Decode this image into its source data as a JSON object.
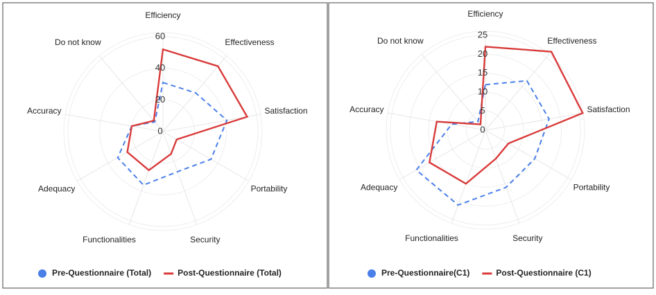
{
  "chart_data": [
    {
      "type": "radar",
      "categories": [
        "Efficiency",
        "Effectiveness",
        "Satisfaction",
        "Portability",
        "Security",
        "Functionalities",
        "Adequacy",
        "Accuracy",
        "Do not know"
      ],
      "series": [
        {
          "name": "Pre-Questionnaire (Total)",
          "color": "#4a7fe8",
          "dashed": true,
          "values": [
            31,
            32,
            41,
            35,
            27,
            36,
            33,
            20,
            8
          ]
        },
        {
          "name": "Post-Questionnaire (Total)",
          "color": "#d93a3a",
          "dashed": false,
          "values": [
            52,
            54,
            54,
            10,
            15,
            26,
            26,
            20,
            9
          ]
        }
      ],
      "ylim": [
        0,
        60
      ],
      "yticks": [
        0,
        20,
        40,
        60
      ]
    },
    {
      "type": "radar",
      "categories": [
        "Efficiency",
        "Effectiveness",
        "Satisfaction",
        "Portability",
        "Security",
        "Functionalities",
        "Adequacy",
        "Accuracy",
        "Do not know"
      ],
      "series": [
        {
          "name": "Pre-Questionnaire(C1)",
          "color": "#4a7fe8",
          "dashed": true,
          "values": [
            12,
            17,
            17,
            15,
            16,
            21,
            21,
            9,
            3
          ]
        },
        {
          "name": "Post-Questionnaire (C1)",
          "color": "#d93a3a",
          "dashed": false,
          "values": [
            22,
            27,
            26,
            7,
            8,
            15,
            17,
            13,
            2
          ]
        }
      ],
      "ylim": [
        0,
        25
      ],
      "yticks": [
        0,
        5,
        10,
        15,
        20,
        25
      ]
    }
  ]
}
